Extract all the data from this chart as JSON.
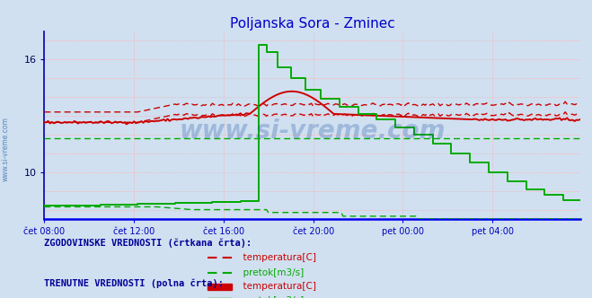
{
  "title": "Poljanska Sora - Zminec",
  "title_color": "#0000cc",
  "bg_color": "#d0e0f0",
  "plot_bg_color": "#d0e0f0",
  "grid_color": "#ffaaaa",
  "x_labels": [
    "čet 08:00",
    "čet 12:00",
    "čet 16:00",
    "čet 20:00",
    "pet 00:00",
    "pet 04:00"
  ],
  "y_min": 7.5,
  "y_max": 17.5,
  "y_ticks": [
    10,
    16
  ],
  "x_axis_color": "#0000ee",
  "y_axis_color": "#0000aa",
  "watermark": "www.si-vreme.com",
  "watermark_color": "#2255aa",
  "watermark_alpha": 0.28,
  "side_label": "www.si-vreme.com",
  "temp_hist_color": "#cc0000",
  "temp_curr_color": "#cc0000",
  "flow_hist_color": "#00aa00",
  "flow_curr_color": "#00aa00",
  "legend_label_color": "#000099",
  "legend_hist_label": "ZGODOVINSKE VREDNOSTI (črtkana črta):",
  "legend_curr_label": "TRENUTNE VREDNOSTI (polna črta):",
  "legend_temp_label": "temperatura[C]",
  "legend_flow_label": "pretok[m3/s]",
  "n_points": 288
}
